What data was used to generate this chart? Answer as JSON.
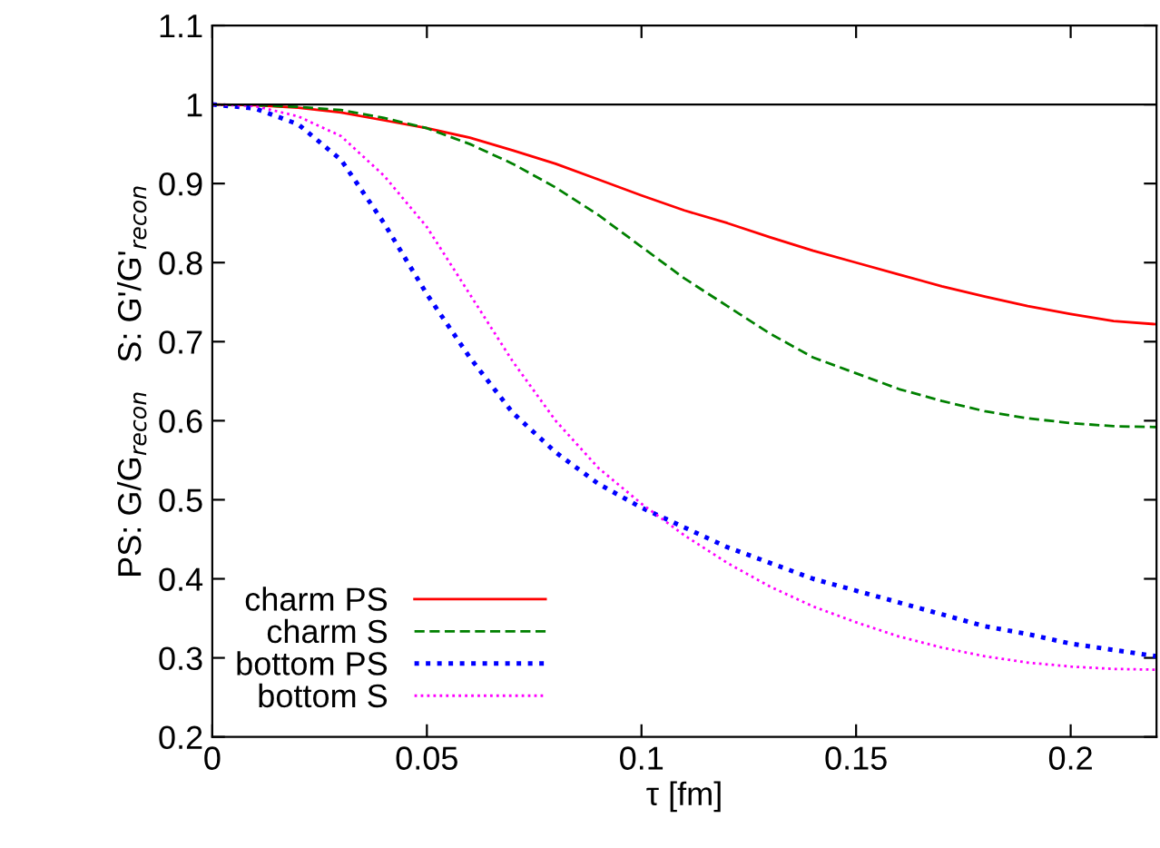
{
  "chart_data": {
    "type": "line",
    "xlabel": "τ [fm]",
    "ylabel": "PS: G/G$_{recon}$   S: G'/G'$_{recon}$",
    "xlim": [
      0,
      0.22
    ],
    "ylim": [
      0.2,
      1.1
    ],
    "xticks": [
      0,
      0.05,
      0.1,
      0.15,
      0.2
    ],
    "yticks": [
      0.2,
      0.3,
      0.4,
      0.5,
      0.6,
      0.7,
      0.8,
      0.9,
      1,
      1.1
    ],
    "grid": false,
    "legend": "bottom left",
    "marker": "none",
    "ref_lines": [
      {
        "axis": "y",
        "value": 1,
        "color": "#000000",
        "line_style": "solid"
      }
    ],
    "x": [
      0,
      0.01,
      0.02,
      0.03,
      0.04,
      0.05,
      0.06,
      0.07,
      0.08,
      0.09,
      0.1,
      0.11,
      0.12,
      0.13,
      0.14,
      0.15,
      0.16,
      0.17,
      0.18,
      0.19,
      0.2,
      0.21,
      0.22
    ],
    "series": [
      {
        "name": "charm PS",
        "color": "#ff0000",
        "line_style": "solid",
        "values": [
          1,
          0.999,
          0.996,
          0.99,
          0.98,
          0.97,
          0.958,
          0.942,
          0.925,
          0.905,
          0.885,
          0.866,
          0.85,
          0.832,
          0.815,
          0.8,
          0.785,
          0.77,
          0.757,
          0.745,
          0.735,
          0.726,
          0.722
        ]
      },
      {
        "name": "charm S",
        "color": "#008000",
        "line_style": "dashed",
        "values": [
          1,
          0.999,
          0.997,
          0.993,
          0.983,
          0.97,
          0.95,
          0.925,
          0.895,
          0.86,
          0.82,
          0.78,
          0.745,
          0.71,
          0.68,
          0.66,
          0.64,
          0.625,
          0.612,
          0.603,
          0.597,
          0.593,
          0.592
        ]
      },
      {
        "name": "bottom PS",
        "color": "#0000ff",
        "line_style": "dotted",
        "values": [
          1,
          0.995,
          0.975,
          0.93,
          0.85,
          0.76,
          0.68,
          0.61,
          0.56,
          0.52,
          0.49,
          0.465,
          0.44,
          0.42,
          0.4,
          0.385,
          0.37,
          0.355,
          0.34,
          0.33,
          0.318,
          0.31,
          0.302
        ]
      },
      {
        "name": "bottom S",
        "color": "#ff00ff",
        "line_style": "dotted",
        "values": [
          1,
          0.998,
          0.985,
          0.96,
          0.91,
          0.845,
          0.76,
          0.675,
          0.6,
          0.54,
          0.495,
          0.455,
          0.42,
          0.39,
          0.365,
          0.345,
          0.327,
          0.313,
          0.302,
          0.294,
          0.289,
          0.286,
          0.285
        ]
      }
    ]
  }
}
